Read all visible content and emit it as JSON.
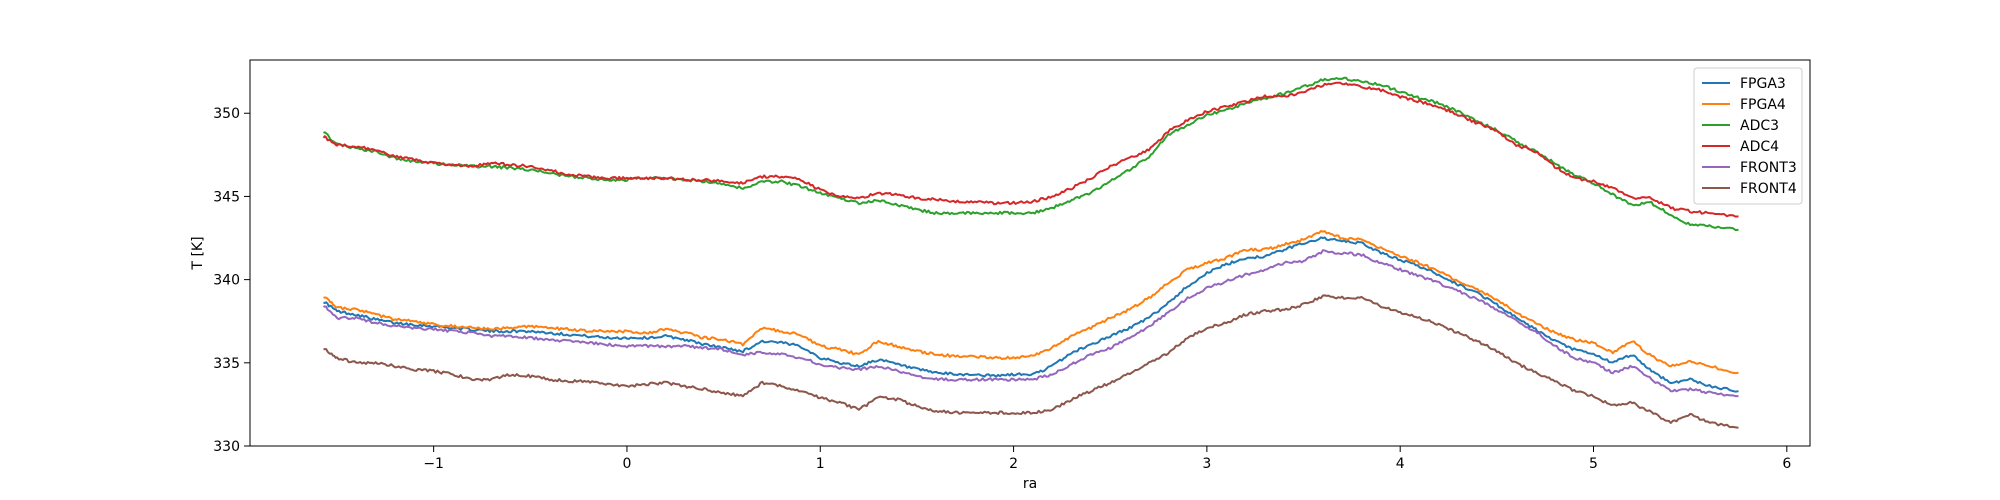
{
  "chart_data": {
    "type": "line",
    "title": "",
    "xlabel": "ra",
    "ylabel": "T [K]",
    "xlim": [
      -1.95,
      6.12
    ],
    "ylim": [
      330,
      353.2
    ],
    "xticks": [
      -1,
      0,
      1,
      2,
      3,
      4,
      5,
      6
    ],
    "xtick_labels": [
      "−1",
      "0",
      "1",
      "2",
      "3",
      "4",
      "5",
      "6"
    ],
    "yticks": [
      330,
      335,
      340,
      345,
      350
    ],
    "ytick_labels": [
      "330",
      "335",
      "340",
      "345",
      "350"
    ],
    "grid": false,
    "legend_position": "top-right",
    "x": [
      -1.57,
      -1.5,
      -1.4,
      -1.3,
      -1.2,
      -1.1,
      -1.0,
      -0.9,
      -0.8,
      -0.7,
      -0.6,
      -0.5,
      -0.4,
      -0.3,
      -0.2,
      -0.1,
      0.0,
      0.1,
      0.2,
      0.3,
      0.4,
      0.5,
      0.6,
      0.7,
      0.8,
      0.9,
      1.0,
      1.1,
      1.2,
      1.3,
      1.4,
      1.5,
      1.6,
      1.7,
      1.8,
      1.9,
      2.0,
      2.1,
      2.2,
      2.3,
      2.4,
      2.5,
      2.6,
      2.7,
      2.8,
      2.9,
      3.0,
      3.1,
      3.2,
      3.3,
      3.4,
      3.5,
      3.6,
      3.7,
      3.8,
      3.9,
      4.0,
      4.1,
      4.2,
      4.3,
      4.4,
      4.5,
      4.6,
      4.7,
      4.8,
      4.9,
      5.0,
      5.1,
      5.2,
      5.3,
      5.4,
      5.5,
      5.6,
      5.75
    ],
    "series": [
      {
        "name": "FPGA3",
        "color": "#1f77b4",
        "values": [
          338.7,
          338.1,
          337.9,
          337.6,
          337.4,
          337.3,
          337.2,
          337.1,
          337.0,
          336.9,
          336.9,
          336.9,
          336.8,
          336.7,
          336.6,
          336.5,
          336.5,
          336.5,
          336.6,
          336.4,
          336.1,
          335.9,
          335.7,
          336.3,
          336.2,
          336.0,
          335.3,
          335.0,
          334.8,
          335.2,
          334.9,
          334.6,
          334.4,
          334.3,
          334.3,
          334.2,
          334.3,
          334.3,
          334.8,
          335.6,
          336.1,
          336.6,
          337.1,
          337.7,
          338.6,
          339.6,
          340.4,
          340.9,
          341.3,
          341.4,
          341.8,
          342.2,
          342.5,
          342.3,
          342.2,
          341.6,
          341.2,
          340.8,
          340.3,
          339.7,
          339.2,
          338.5,
          337.7,
          337.0,
          336.3,
          335.8,
          335.5,
          335.0,
          335.5,
          334.5,
          333.8,
          334.0,
          333.6,
          333.3
        ]
      },
      {
        "name": "FPGA4",
        "color": "#ff7f0e",
        "values": [
          339.0,
          338.3,
          338.2,
          337.9,
          337.6,
          337.5,
          337.3,
          337.2,
          337.1,
          337.0,
          337.1,
          337.2,
          337.1,
          337.0,
          336.9,
          336.9,
          336.9,
          336.8,
          337.0,
          336.8,
          336.5,
          336.4,
          336.1,
          337.1,
          336.9,
          336.7,
          336.0,
          335.8,
          335.5,
          336.3,
          336.0,
          335.7,
          335.5,
          335.4,
          335.4,
          335.3,
          335.3,
          335.4,
          335.9,
          336.6,
          337.1,
          337.7,
          338.2,
          338.9,
          339.8,
          340.6,
          341.0,
          341.3,
          341.8,
          341.8,
          342.1,
          342.4,
          342.9,
          342.5,
          342.4,
          341.9,
          341.4,
          341.0,
          340.5,
          339.9,
          339.4,
          338.8,
          338.0,
          337.4,
          336.8,
          336.4,
          336.2,
          335.6,
          336.3,
          335.4,
          334.8,
          335.1,
          334.8,
          334.4
        ]
      },
      {
        "name": "ADC3",
        "color": "#2ca02c",
        "values": [
          348.9,
          348.1,
          347.9,
          347.7,
          347.3,
          347.1,
          347.0,
          346.9,
          346.8,
          346.8,
          346.7,
          346.6,
          346.4,
          346.2,
          346.1,
          346.0,
          346.0,
          346.1,
          346.1,
          346.0,
          345.9,
          345.7,
          345.5,
          345.9,
          345.9,
          345.6,
          345.2,
          344.9,
          344.6,
          344.8,
          344.5,
          344.2,
          344.0,
          344.0,
          344.0,
          344.0,
          344.0,
          344.0,
          344.3,
          344.8,
          345.2,
          345.9,
          346.6,
          347.4,
          348.7,
          349.3,
          349.9,
          350.2,
          350.6,
          350.9,
          351.2,
          351.6,
          352.0,
          352.1,
          351.9,
          351.7,
          351.3,
          350.9,
          350.6,
          350.1,
          349.5,
          349.0,
          348.3,
          347.7,
          347.0,
          346.3,
          345.8,
          345.1,
          344.5,
          344.6,
          343.9,
          343.3,
          343.2,
          343.0
        ]
      },
      {
        "name": "ADC4",
        "color": "#d62728",
        "values": [
          348.6,
          348.1,
          348.0,
          347.8,
          347.4,
          347.2,
          347.0,
          346.9,
          346.8,
          347.0,
          346.9,
          346.8,
          346.6,
          346.3,
          346.2,
          346.1,
          346.1,
          346.1,
          346.1,
          346.0,
          346.0,
          345.9,
          345.8,
          346.2,
          346.2,
          346.0,
          345.4,
          345.0,
          344.9,
          345.2,
          345.1,
          344.9,
          344.8,
          344.7,
          344.7,
          344.6,
          344.6,
          344.7,
          345.0,
          345.5,
          346.1,
          346.8,
          347.3,
          347.8,
          348.9,
          349.6,
          350.1,
          350.4,
          350.7,
          351.0,
          351.0,
          351.3,
          351.7,
          351.8,
          351.6,
          351.4,
          351.0,
          350.7,
          350.4,
          349.9,
          349.4,
          348.9,
          348.1,
          347.7,
          346.8,
          346.1,
          345.9,
          345.5,
          344.9,
          344.9,
          344.3,
          344.1,
          344.0,
          343.8
        ]
      },
      {
        "name": "FRONT3",
        "color": "#9467bd",
        "values": [
          338.5,
          337.7,
          337.7,
          337.4,
          337.2,
          337.1,
          337.0,
          336.9,
          336.8,
          336.6,
          336.6,
          336.5,
          336.4,
          336.3,
          336.2,
          336.1,
          336.0,
          336.0,
          336.0,
          336.0,
          335.9,
          335.8,
          335.5,
          335.6,
          335.5,
          335.3,
          334.9,
          334.7,
          334.6,
          334.8,
          334.5,
          334.2,
          334.0,
          334.0,
          334.0,
          334.0,
          334.0,
          334.0,
          334.3,
          334.9,
          335.5,
          335.9,
          336.5,
          337.2,
          338.0,
          338.9,
          339.5,
          339.9,
          340.3,
          340.6,
          341.0,
          341.1,
          341.7,
          341.6,
          341.5,
          341.0,
          340.6,
          340.2,
          339.8,
          339.3,
          338.8,
          338.2,
          337.5,
          336.9,
          336.0,
          335.3,
          335.0,
          334.4,
          334.8,
          334.0,
          333.3,
          333.4,
          333.2,
          333.0
        ]
      },
      {
        "name": "FRONT4",
        "color": "#8c564b",
        "values": [
          335.9,
          335.3,
          335.0,
          335.0,
          334.8,
          334.6,
          334.5,
          334.3,
          334.0,
          334.0,
          334.3,
          334.2,
          334.0,
          333.9,
          333.9,
          333.7,
          333.6,
          333.7,
          333.8,
          333.6,
          333.4,
          333.2,
          333.0,
          333.8,
          333.6,
          333.3,
          332.9,
          332.6,
          332.2,
          332.9,
          332.8,
          332.4,
          332.1,
          332.0,
          332.0,
          332.0,
          332.0,
          332.0,
          332.2,
          332.8,
          333.3,
          333.8,
          334.4,
          335.0,
          335.6,
          336.5,
          337.1,
          337.4,
          337.9,
          338.1,
          338.2,
          338.5,
          339.0,
          338.9,
          338.9,
          338.4,
          338.0,
          337.7,
          337.3,
          336.8,
          336.3,
          335.7,
          335.0,
          334.4,
          333.9,
          333.3,
          333.0,
          332.4,
          332.6,
          332.0,
          331.4,
          331.9,
          331.4,
          331.1
        ]
      }
    ]
  }
}
